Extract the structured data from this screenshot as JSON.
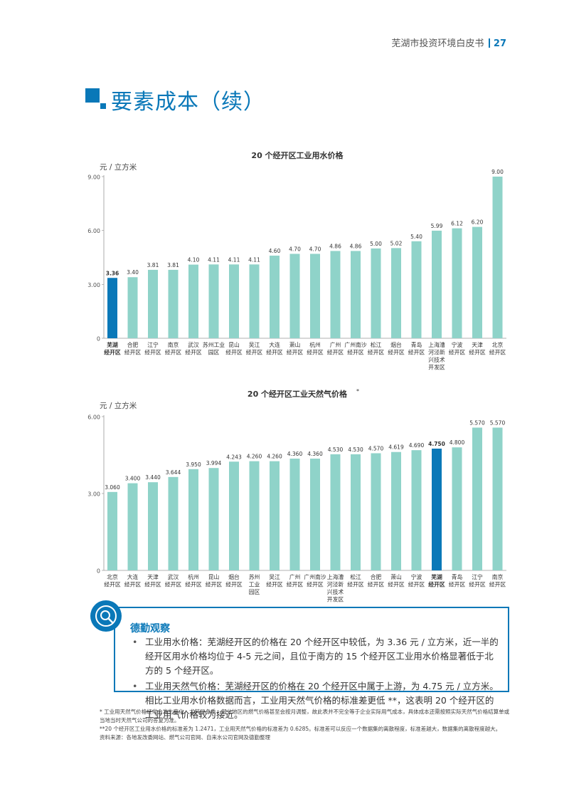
{
  "header": {
    "doc_title": "芜湖市投资环境白皮书",
    "page_number": "27"
  },
  "page_title": "要素成本（续）",
  "chart_data": [
    {
      "type": "bar",
      "title": "20 个经开区工业用水价格",
      "ylabel": "元 / 立方米",
      "ylim": [
        0,
        9
      ],
      "yticks": [
        "0",
        "3.00",
        "6.00",
        "9.00"
      ],
      "grid": false,
      "categories": [
        [
          "芜湖",
          "经开区"
        ],
        [
          "合肥",
          "经开区"
        ],
        [
          "江宁",
          "经开区"
        ],
        [
          "南京",
          "经开区"
        ],
        [
          "武汉",
          "经开区"
        ],
        [
          "苏州工业",
          "园区"
        ],
        [
          "昆山",
          "经开区"
        ],
        [
          "吴江",
          "经开区"
        ],
        [
          "大连",
          "经开区"
        ],
        [
          "萧山",
          "经开区"
        ],
        [
          "杭州",
          "经开区"
        ],
        [
          "广州",
          "经开区"
        ],
        [
          "广州南沙",
          "经开区"
        ],
        [
          "松江",
          "经开区"
        ],
        [
          "烟台",
          "经开区"
        ],
        [
          "青岛",
          "经开区"
        ],
        [
          "上海漕",
          "河泾新",
          "兴技术",
          "开发区"
        ],
        [
          "宁波",
          "经开区"
        ],
        [
          "天津",
          "经开区"
        ],
        [
          "北京",
          "经开区"
        ]
      ],
      "values": [
        3.36,
        3.4,
        3.81,
        3.81,
        4.1,
        4.11,
        4.11,
        4.11,
        4.6,
        4.7,
        4.7,
        4.86,
        4.86,
        5.0,
        5.02,
        5.4,
        5.99,
        6.12,
        6.2,
        9.0
      ],
      "value_labels": [
        "3.36",
        "3.40",
        "3.81",
        "3.81",
        "4.10",
        "4.11",
        "4.11",
        "4.11",
        "4.60",
        "4.70",
        "4.70",
        "4.86",
        "4.86",
        "5.00",
        "5.02",
        "5.40",
        "5.99",
        "6.12",
        "6.20",
        "9.00"
      ],
      "highlight_index": 0,
      "colors": {
        "bar": "#8fd3c9",
        "highlight": "#0a78b8"
      }
    },
    {
      "type": "bar",
      "title": "20 个经开区工业天然气价格",
      "title_mark": "*",
      "ylabel": "元 / 立方米",
      "ylim": [
        0,
        6
      ],
      "yticks": [
        "0",
        "3.00",
        "6.00"
      ],
      "grid": false,
      "categories": [
        [
          "北京",
          "经开区"
        ],
        [
          "大连",
          "经开区"
        ],
        [
          "天津",
          "经开区"
        ],
        [
          "武汉",
          "经开区"
        ],
        [
          "杭州",
          "经开区"
        ],
        [
          "昆山",
          "经开区"
        ],
        [
          "烟台",
          "经开区"
        ],
        [
          "苏州",
          "工业",
          "园区"
        ],
        [
          "吴江",
          "经开区"
        ],
        [
          "广州",
          "经开区"
        ],
        [
          "广州南沙",
          "经开区"
        ],
        [
          "上海漕",
          "河泾新",
          "兴技术",
          "开发区"
        ],
        [
          "松江",
          "经开区"
        ],
        [
          "合肥",
          "经开区"
        ],
        [
          "萧山",
          "经开区"
        ],
        [
          "宁波",
          "经开区"
        ],
        [
          "芜湖",
          "经开区"
        ],
        [
          "青岛",
          "经开区"
        ],
        [
          "江宁",
          "经开区"
        ],
        [
          "南京",
          "经开区"
        ]
      ],
      "values": [
        3.06,
        3.4,
        3.44,
        3.644,
        3.95,
        3.994,
        4.243,
        4.26,
        4.26,
        4.36,
        4.36,
        4.53,
        4.53,
        4.57,
        4.619,
        4.69,
        4.75,
        4.8,
        5.57,
        5.57
      ],
      "value_labels": [
        "3.060",
        "3.400",
        "3.440",
        "3.644",
        "3.950",
        "3.994",
        "4.243",
        "4.260",
        "4.260",
        "4.360",
        "4.360",
        "4.530",
        "4.530",
        "4.570",
        "4.619",
        "4.690",
        "4.750",
        "4.800",
        "5.570",
        "5.570"
      ],
      "highlight_index": 16,
      "colors": {
        "bar": "#8fd3c9",
        "highlight": "#0a78b8"
      }
    }
  ],
  "observation": {
    "title": "德勤观察",
    "icon": "magnifier-icon",
    "bullets": [
      "工业用水价格：芜湖经开区的价格在 20 个经开区中较低，为 3.36 元 / 立方米，近一半的经开区用水价格均位于 4-5 元之间，且位于南方的 15 个经开区工业用水价格显著低于北方的 5 个经开区。",
      "工业用天然气价格：芜湖经开区的价格在 20 个经开区中属于上游，为 4.75 元 / 立方米。相比工业用水价格数据而言，工业用天然气价格的标准差更低 **，这表明 20 个经开区的工业用气价格较为接近。"
    ]
  },
  "footnotes": [
    "* 工业用天然气价格经常会发生变化，尤其是冬季，部分地区的燃气价格甚至会按月调整，故此表并不完全等于企业实际用气成本，具体成本还需按照实际天然气价格结算单或当地当时天然气公司的答复为准。",
    "**20 个经开区工业用水价格的标准差为 1.2471，工业用天然气价格的标准差为 0.6285。标准差可以反应一个数据集的离散程度，标准差越大，数据集的离散程度越大。",
    "资料来源：各地发改委网站、燃气公司官网、自来水公司官网及德勤整理"
  ]
}
